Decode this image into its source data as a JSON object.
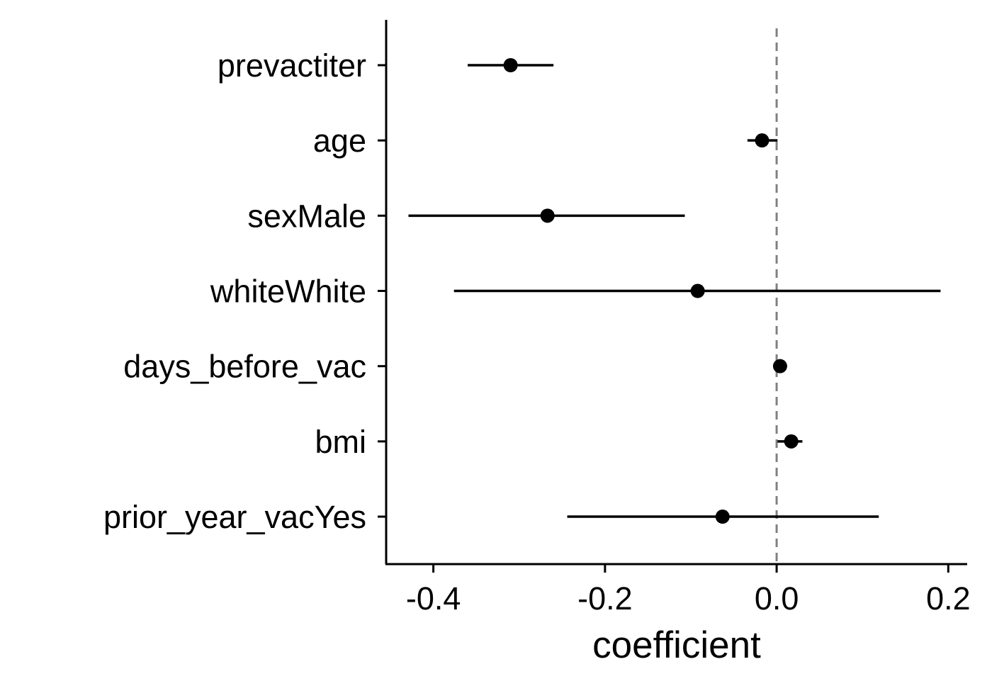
{
  "chart_data": {
    "type": "scatter",
    "subtype": "coefficient-plot",
    "title": "",
    "xlabel": "coefficient",
    "ylabel": "",
    "xlim": [
      -0.455,
      0.222
    ],
    "xticks": [
      -0.4,
      -0.2,
      0.0,
      0.2
    ],
    "xtick_labels": [
      "-0.4",
      "-0.2",
      "0.0",
      "0.2"
    ],
    "reference_line": {
      "x": 0.0,
      "style": "dashed",
      "color": "#808080"
    },
    "grid": false,
    "legend": "none",
    "point_color": "#000000",
    "categories": [
      "prevactiter",
      "age",
      "sexMale",
      "whiteWhite",
      "days_before_vac",
      "bmi",
      "prior_year_vacYes"
    ],
    "series": [
      {
        "estimate": [
          -0.31,
          -0.017,
          -0.267,
          -0.092,
          0.004,
          0.017,
          -0.063
        ],
        "lower": [
          -0.36,
          -0.034,
          -0.429,
          -0.376,
          0.001,
          0.001,
          -0.244
        ],
        "upper": [
          -0.26,
          0.001,
          -0.107,
          0.191,
          0.006,
          0.03,
          0.119
        ]
      }
    ]
  }
}
